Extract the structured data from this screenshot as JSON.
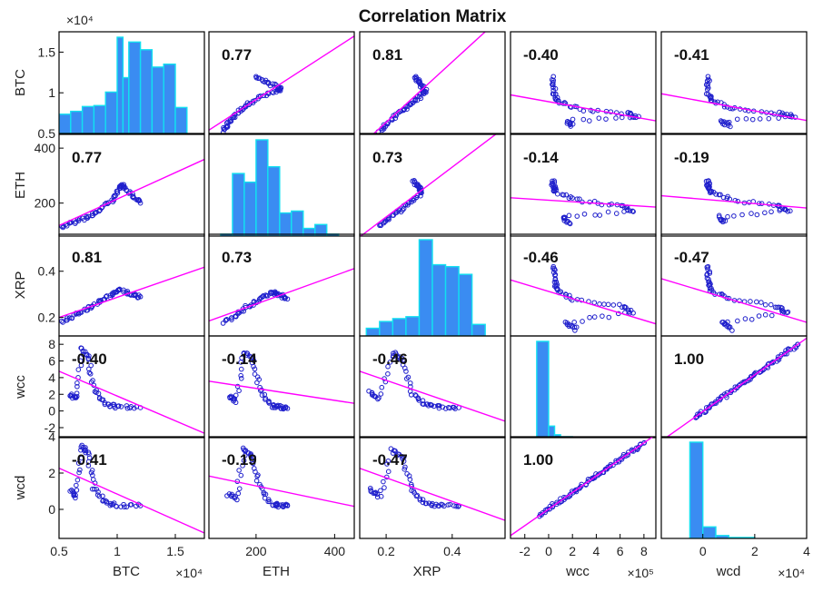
{
  "chart_data": {
    "type": "scatter",
    "title": "Correlation Matrix",
    "variables": [
      "BTC",
      "ETH",
      "XRP",
      "wcc",
      "wcd"
    ],
    "ranges": {
      "BTC": [
        5000,
        17500
      ],
      "ETH": [
        80,
        450
      ],
      "XRP": [
        0.12,
        0.56
      ],
      "wcc": [
        -3.2,
        9
      ],
      "wcd": [
        -1.6,
        4
      ]
    },
    "y_ticks": {
      "BTC": {
        "values": [
          5000,
          10000,
          15000
        ],
        "labels": [
          "0.5",
          "1",
          "1.5"
        ],
        "exponent": "×10⁴"
      },
      "ETH": {
        "values": [
          200,
          400
        ],
        "labels": [
          "200",
          "400"
        ]
      },
      "XRP": {
        "values": [
          0.2,
          0.4
        ],
        "labels": [
          "0.2",
          "0.4"
        ]
      },
      "wcc": {
        "values": [
          -2,
          0,
          2,
          4,
          6,
          8
        ],
        "labels": [
          "-2",
          "0",
          "2",
          "4",
          "6",
          "8"
        ]
      },
      "wcd": {
        "values": [
          0,
          2,
          4
        ],
        "labels": [
          "0",
          "2",
          "4"
        ]
      }
    },
    "x_ticks": {
      "BTC": {
        "values": [
          5000,
          10000,
          15000
        ],
        "labels": [
          "0.5",
          "1",
          "1.5"
        ],
        "exponent": "×10⁴"
      },
      "ETH": {
        "values": [
          200,
          400
        ],
        "labels": [
          "200",
          "400"
        ]
      },
      "XRP": {
        "values": [
          0.2,
          0.4
        ],
        "labels": [
          "0.2",
          "0.4"
        ]
      },
      "wcc": {
        "values": [
          -2,
          0,
          2,
          4,
          6,
          8
        ],
        "labels": [
          "-2",
          "0",
          "2",
          "4",
          "6",
          "8"
        ],
        "exponent": "×10⁵"
      },
      "wcd": {
        "values": [
          0,
          2,
          4
        ],
        "labels": [
          "0",
          "2",
          "4"
        ],
        "exponent": "×10⁴"
      }
    },
    "correlations": [
      [
        1.0,
        0.77,
        0.81,
        -0.4,
        -0.41
      ],
      [
        0.77,
        1.0,
        0.73,
        -0.14,
        -0.19
      ],
      [
        0.81,
        0.73,
        1.0,
        -0.46,
        -0.47
      ],
      [
        -0.4,
        -0.14,
        -0.46,
        1.0,
        1.0
      ],
      [
        -0.41,
        -0.19,
        -0.47,
        1.0,
        1.0
      ]
    ],
    "correlation_labels": [
      [
        "",
        "0.77",
        "0.81",
        "-0.40",
        "-0.41"
      ],
      [
        "0.77",
        "",
        "0.73",
        "-0.14",
        "-0.19"
      ],
      [
        "0.81",
        "0.73",
        "",
        "-0.46",
        "-0.47"
      ],
      [
        "-0.40",
        "-0.14",
        "-0.46",
        "",
        "1.00"
      ],
      [
        "-0.41",
        "-0.19",
        "-0.47",
        "1.00",
        ""
      ]
    ],
    "histograms": {
      "BTC": {
        "bin_edges": [
          5000,
          6000,
          7000,
          8000,
          9000,
          10000,
          10500,
          11000,
          12000,
          13000,
          14000,
          15000,
          16000
        ],
        "counts": [
          20,
          23,
          28,
          29,
          43,
          100,
          58,
          95,
          87,
          69,
          72,
          27
        ]
      },
      "ETH": {
        "bin_edges": [
          110,
          140,
          170,
          200,
          230,
          260,
          290,
          320,
          350,
          380,
          410
        ],
        "counts": [
          2,
          65,
          56,
          100,
          72,
          24,
          26,
          8,
          12,
          2
        ]
      },
      "XRP": {
        "bin_edges": [
          0.14,
          0.18,
          0.22,
          0.26,
          0.3,
          0.34,
          0.38,
          0.42,
          0.46,
          0.5
        ],
        "counts": [
          8,
          15,
          18,
          20,
          100,
          74,
          72,
          64,
          12
        ]
      },
      "wcc": {
        "bin_edges": [
          -1.0,
          0.0,
          0.5,
          1.0,
          2.0
        ],
        "counts": [
          100,
          12,
          3,
          1
        ]
      },
      "wcd": {
        "bin_edges": [
          -0.5,
          0.0,
          0.5,
          1.0,
          2.0
        ],
        "counts": [
          100,
          12,
          3,
          1
        ]
      }
    },
    "scatter_shape": {
      "BTC-ETH": [
        [
          5200,
          115
        ],
        [
          6300,
          130
        ],
        [
          7500,
          150
        ],
        [
          8500,
          175
        ],
        [
          9500,
          210
        ],
        [
          10200,
          255
        ],
        [
          10500,
          265
        ],
        [
          11200,
          230
        ],
        [
          12000,
          200
        ]
      ],
      "BTC-XRP": [
        [
          5200,
          0.18
        ],
        [
          6500,
          0.21
        ],
        [
          7500,
          0.24
        ],
        [
          8500,
          0.27
        ],
        [
          9500,
          0.3
        ],
        [
          10200,
          0.32
        ],
        [
          11200,
          0.3
        ],
        [
          12000,
          0.29
        ]
      ],
      "BTC-wcc": [
        [
          6000,
          2.0
        ],
        [
          6500,
          1.5
        ],
        [
          7000,
          7.5
        ],
        [
          7500,
          6.5
        ],
        [
          8000,
          2.5
        ],
        [
          9000,
          0.8
        ],
        [
          10000,
          0.5
        ],
        [
          12000,
          0.4
        ]
      ],
      "BTC-wcd": [
        [
          6000,
          1.0
        ],
        [
          6500,
          0.7
        ],
        [
          7000,
          3.5
        ],
        [
          7500,
          3.0
        ],
        [
          8000,
          1.2
        ],
        [
          9000,
          0.4
        ],
        [
          10000,
          0.2
        ],
        [
          12000,
          0.2
        ]
      ],
      "ETH-XRP": [
        [
          120,
          0.18
        ],
        [
          150,
          0.21
        ],
        [
          180,
          0.25
        ],
        [
          210,
          0.28
        ],
        [
          240,
          0.31
        ],
        [
          260,
          0.3
        ],
        [
          280,
          0.28
        ]
      ],
      "ETH-wcc": [
        [
          130,
          1.8
        ],
        [
          150,
          1.2
        ],
        [
          170,
          7.0
        ],
        [
          190,
          6.2
        ],
        [
          210,
          2.5
        ],
        [
          240,
          0.6
        ],
        [
          260,
          0.5
        ],
        [
          280,
          0.3
        ]
      ],
      "ETH-wcd": [
        [
          130,
          0.8
        ],
        [
          150,
          0.6
        ],
        [
          170,
          3.3
        ],
        [
          190,
          2.9
        ],
        [
          210,
          1.2
        ],
        [
          240,
          0.3
        ],
        [
          260,
          0.2
        ],
        [
          280,
          0.2
        ]
      ],
      "XRP-wcc": [
        [
          0.15,
          2.3
        ],
        [
          0.18,
          1.5
        ],
        [
          0.22,
          7.0
        ],
        [
          0.25,
          6.0
        ],
        [
          0.28,
          2.0
        ],
        [
          0.32,
          0.7
        ],
        [
          0.36,
          0.5
        ],
        [
          0.42,
          0.4
        ]
      ],
      "XRP-wcd": [
        [
          0.15,
          1.1
        ],
        [
          0.18,
          0.7
        ],
        [
          0.22,
          3.3
        ],
        [
          0.25,
          2.8
        ],
        [
          0.28,
          1.0
        ],
        [
          0.32,
          0.3
        ],
        [
          0.36,
          0.2
        ],
        [
          0.42,
          0.2
        ]
      ],
      "wcc-wcd": [
        [
          -0.8,
          -0.3
        ],
        [
          0,
          0.05
        ],
        [
          1,
          0.5
        ],
        [
          2,
          0.95
        ],
        [
          3,
          1.4
        ],
        [
          4,
          1.85
        ],
        [
          5,
          2.3
        ],
        [
          6,
          2.75
        ],
        [
          7,
          3.2
        ],
        [
          8,
          3.65
        ]
      ]
    },
    "colors": {
      "marker": "#1f1fcc",
      "histogram_fill": "#3a8cf2",
      "histogram_edge": "#12e0f0",
      "fit_line": "#ff00ff",
      "axes": "#000000"
    },
    "grid": false
  }
}
